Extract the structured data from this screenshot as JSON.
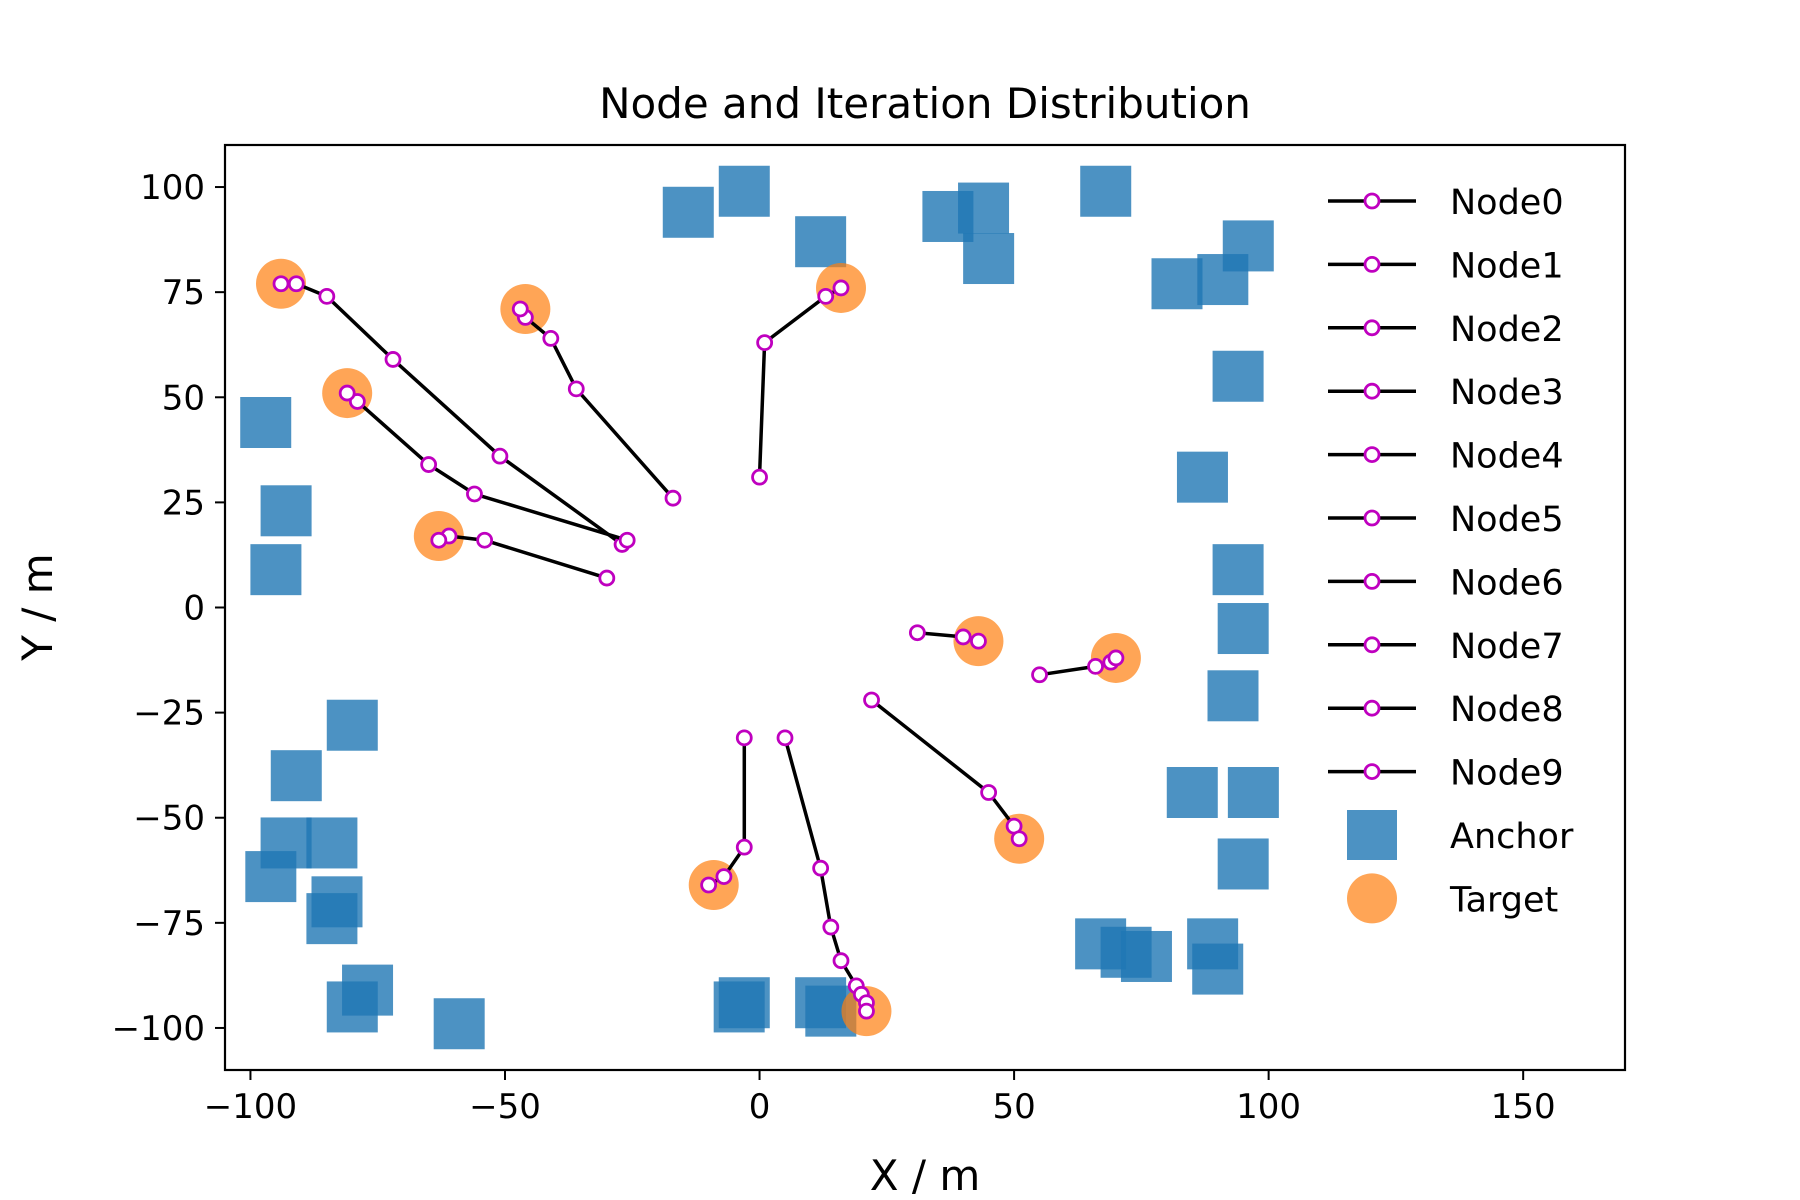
{
  "chart_data": {
    "type": "scatter",
    "title": "Node and Iteration Distribution",
    "xlabel": "X / m",
    "ylabel": "Y / m",
    "xlim": [
      -105,
      170
    ],
    "ylim": [
      -110,
      110
    ],
    "xticks": [
      -100,
      -50,
      0,
      50,
      100,
      150
    ],
    "yticks": [
      -100,
      -75,
      -50,
      -25,
      0,
      25,
      50,
      75,
      100
    ],
    "xtick_labels": [
      "−100",
      "−50",
      "0",
      "50",
      "100",
      "150"
    ],
    "ytick_labels": [
      "−100",
      "−75",
      "−50",
      "−25",
      "0",
      "25",
      "50",
      "75",
      "100"
    ],
    "grid": false,
    "legend_position": "right",
    "colors": {
      "anchor": "#1f77b4",
      "target": "#ff7f0e",
      "path_line": "#000000",
      "path_marker": "#bf00bf"
    },
    "legend": [
      {
        "label": "Node0",
        "kind": "path"
      },
      {
        "label": "Node1",
        "kind": "path"
      },
      {
        "label": "Node2",
        "kind": "path"
      },
      {
        "label": "Node3",
        "kind": "path"
      },
      {
        "label": "Node4",
        "kind": "path"
      },
      {
        "label": "Node5",
        "kind": "path"
      },
      {
        "label": "Node6",
        "kind": "path"
      },
      {
        "label": "Node7",
        "kind": "path"
      },
      {
        "label": "Node8",
        "kind": "path"
      },
      {
        "label": "Node9",
        "kind": "path"
      },
      {
        "label": "Anchor",
        "kind": "square"
      },
      {
        "label": "Target",
        "kind": "circle"
      }
    ],
    "anchors": [
      [
        -3,
        99
      ],
      [
        -14,
        94
      ],
      [
        12,
        87
      ],
      [
        37,
        93
      ],
      [
        44,
        95
      ],
      [
        45,
        83
      ],
      [
        68,
        99
      ],
      [
        82,
        77
      ],
      [
        91,
        78
      ],
      [
        96,
        86
      ],
      [
        94,
        55
      ],
      [
        87,
        31
      ],
      [
        94,
        9
      ],
      [
        95,
        -5
      ],
      [
        93,
        -21
      ],
      [
        85,
        -44
      ],
      [
        97,
        -44
      ],
      [
        95,
        -61
      ],
      [
        89,
        -80
      ],
      [
        90,
        -86
      ],
      [
        72,
        -82
      ],
      [
        67,
        -80
      ],
      [
        76,
        -83
      ],
      [
        -97,
        44
      ],
      [
        -93,
        23
      ],
      [
        -95,
        9
      ],
      [
        -80,
        -28
      ],
      [
        -91,
        -40
      ],
      [
        -93,
        -56
      ],
      [
        -84,
        -56
      ],
      [
        -96,
        -64
      ],
      [
        -83,
        -70
      ],
      [
        -84,
        -74
      ],
      [
        -77,
        -91
      ],
      [
        -80,
        -95
      ],
      [
        -59,
        -99
      ],
      [
        -3,
        -94
      ],
      [
        -4,
        -95
      ],
      [
        12,
        -94
      ],
      [
        14,
        -96
      ]
    ],
    "targets": [
      [
        -94,
        77
      ],
      [
        -46,
        71
      ],
      [
        -81,
        51
      ],
      [
        -63,
        17
      ],
      [
        16,
        76
      ],
      [
        43,
        -8
      ],
      [
        70,
        -12
      ],
      [
        51,
        -55
      ],
      [
        -9,
        -66
      ],
      [
        21,
        -96
      ]
    ],
    "series": [
      {
        "name": "Node0",
        "points": [
          [
            -27,
            15
          ],
          [
            -51,
            36
          ],
          [
            -72,
            59
          ],
          [
            -85,
            74
          ],
          [
            -91,
            77
          ],
          [
            -94,
            77
          ]
        ]
      },
      {
        "name": "Node1",
        "points": [
          [
            -17,
            26
          ],
          [
            -36,
            52
          ],
          [
            -41,
            64
          ],
          [
            -46,
            69
          ],
          [
            -47,
            71
          ]
        ]
      },
      {
        "name": "Node2",
        "points": [
          [
            -26,
            16
          ],
          [
            -56,
            27
          ],
          [
            -65,
            34
          ],
          [
            -79,
            49
          ],
          [
            -81,
            51
          ]
        ]
      },
      {
        "name": "Node3",
        "points": [
          [
            -30,
            7
          ],
          [
            -54,
            16
          ],
          [
            -61,
            17
          ],
          [
            -63,
            16
          ]
        ]
      },
      {
        "name": "Node4",
        "points": [
          [
            0,
            31
          ],
          [
            1,
            63
          ],
          [
            13,
            74
          ],
          [
            16,
            76
          ]
        ]
      },
      {
        "name": "Node5",
        "points": [
          [
            31,
            -6
          ],
          [
            40,
            -7
          ],
          [
            43,
            -8
          ]
        ]
      },
      {
        "name": "Node6",
        "points": [
          [
            55,
            -16
          ],
          [
            66,
            -14
          ],
          [
            69,
            -13
          ],
          [
            70,
            -12
          ]
        ]
      },
      {
        "name": "Node7",
        "points": [
          [
            22,
            -22
          ],
          [
            45,
            -44
          ],
          [
            50,
            -52
          ],
          [
            51,
            -55
          ]
        ]
      },
      {
        "name": "Node8",
        "points": [
          [
            -3,
            -31
          ],
          [
            -3,
            -57
          ],
          [
            -7,
            -64
          ],
          [
            -10,
            -66
          ]
        ]
      },
      {
        "name": "Node9",
        "points": [
          [
            5,
            -31
          ],
          [
            12,
            -62
          ],
          [
            14,
            -76
          ],
          [
            16,
            -84
          ],
          [
            19,
            -90
          ],
          [
            20,
            -92
          ],
          [
            21,
            -94
          ],
          [
            21,
            -96
          ]
        ]
      }
    ]
  }
}
